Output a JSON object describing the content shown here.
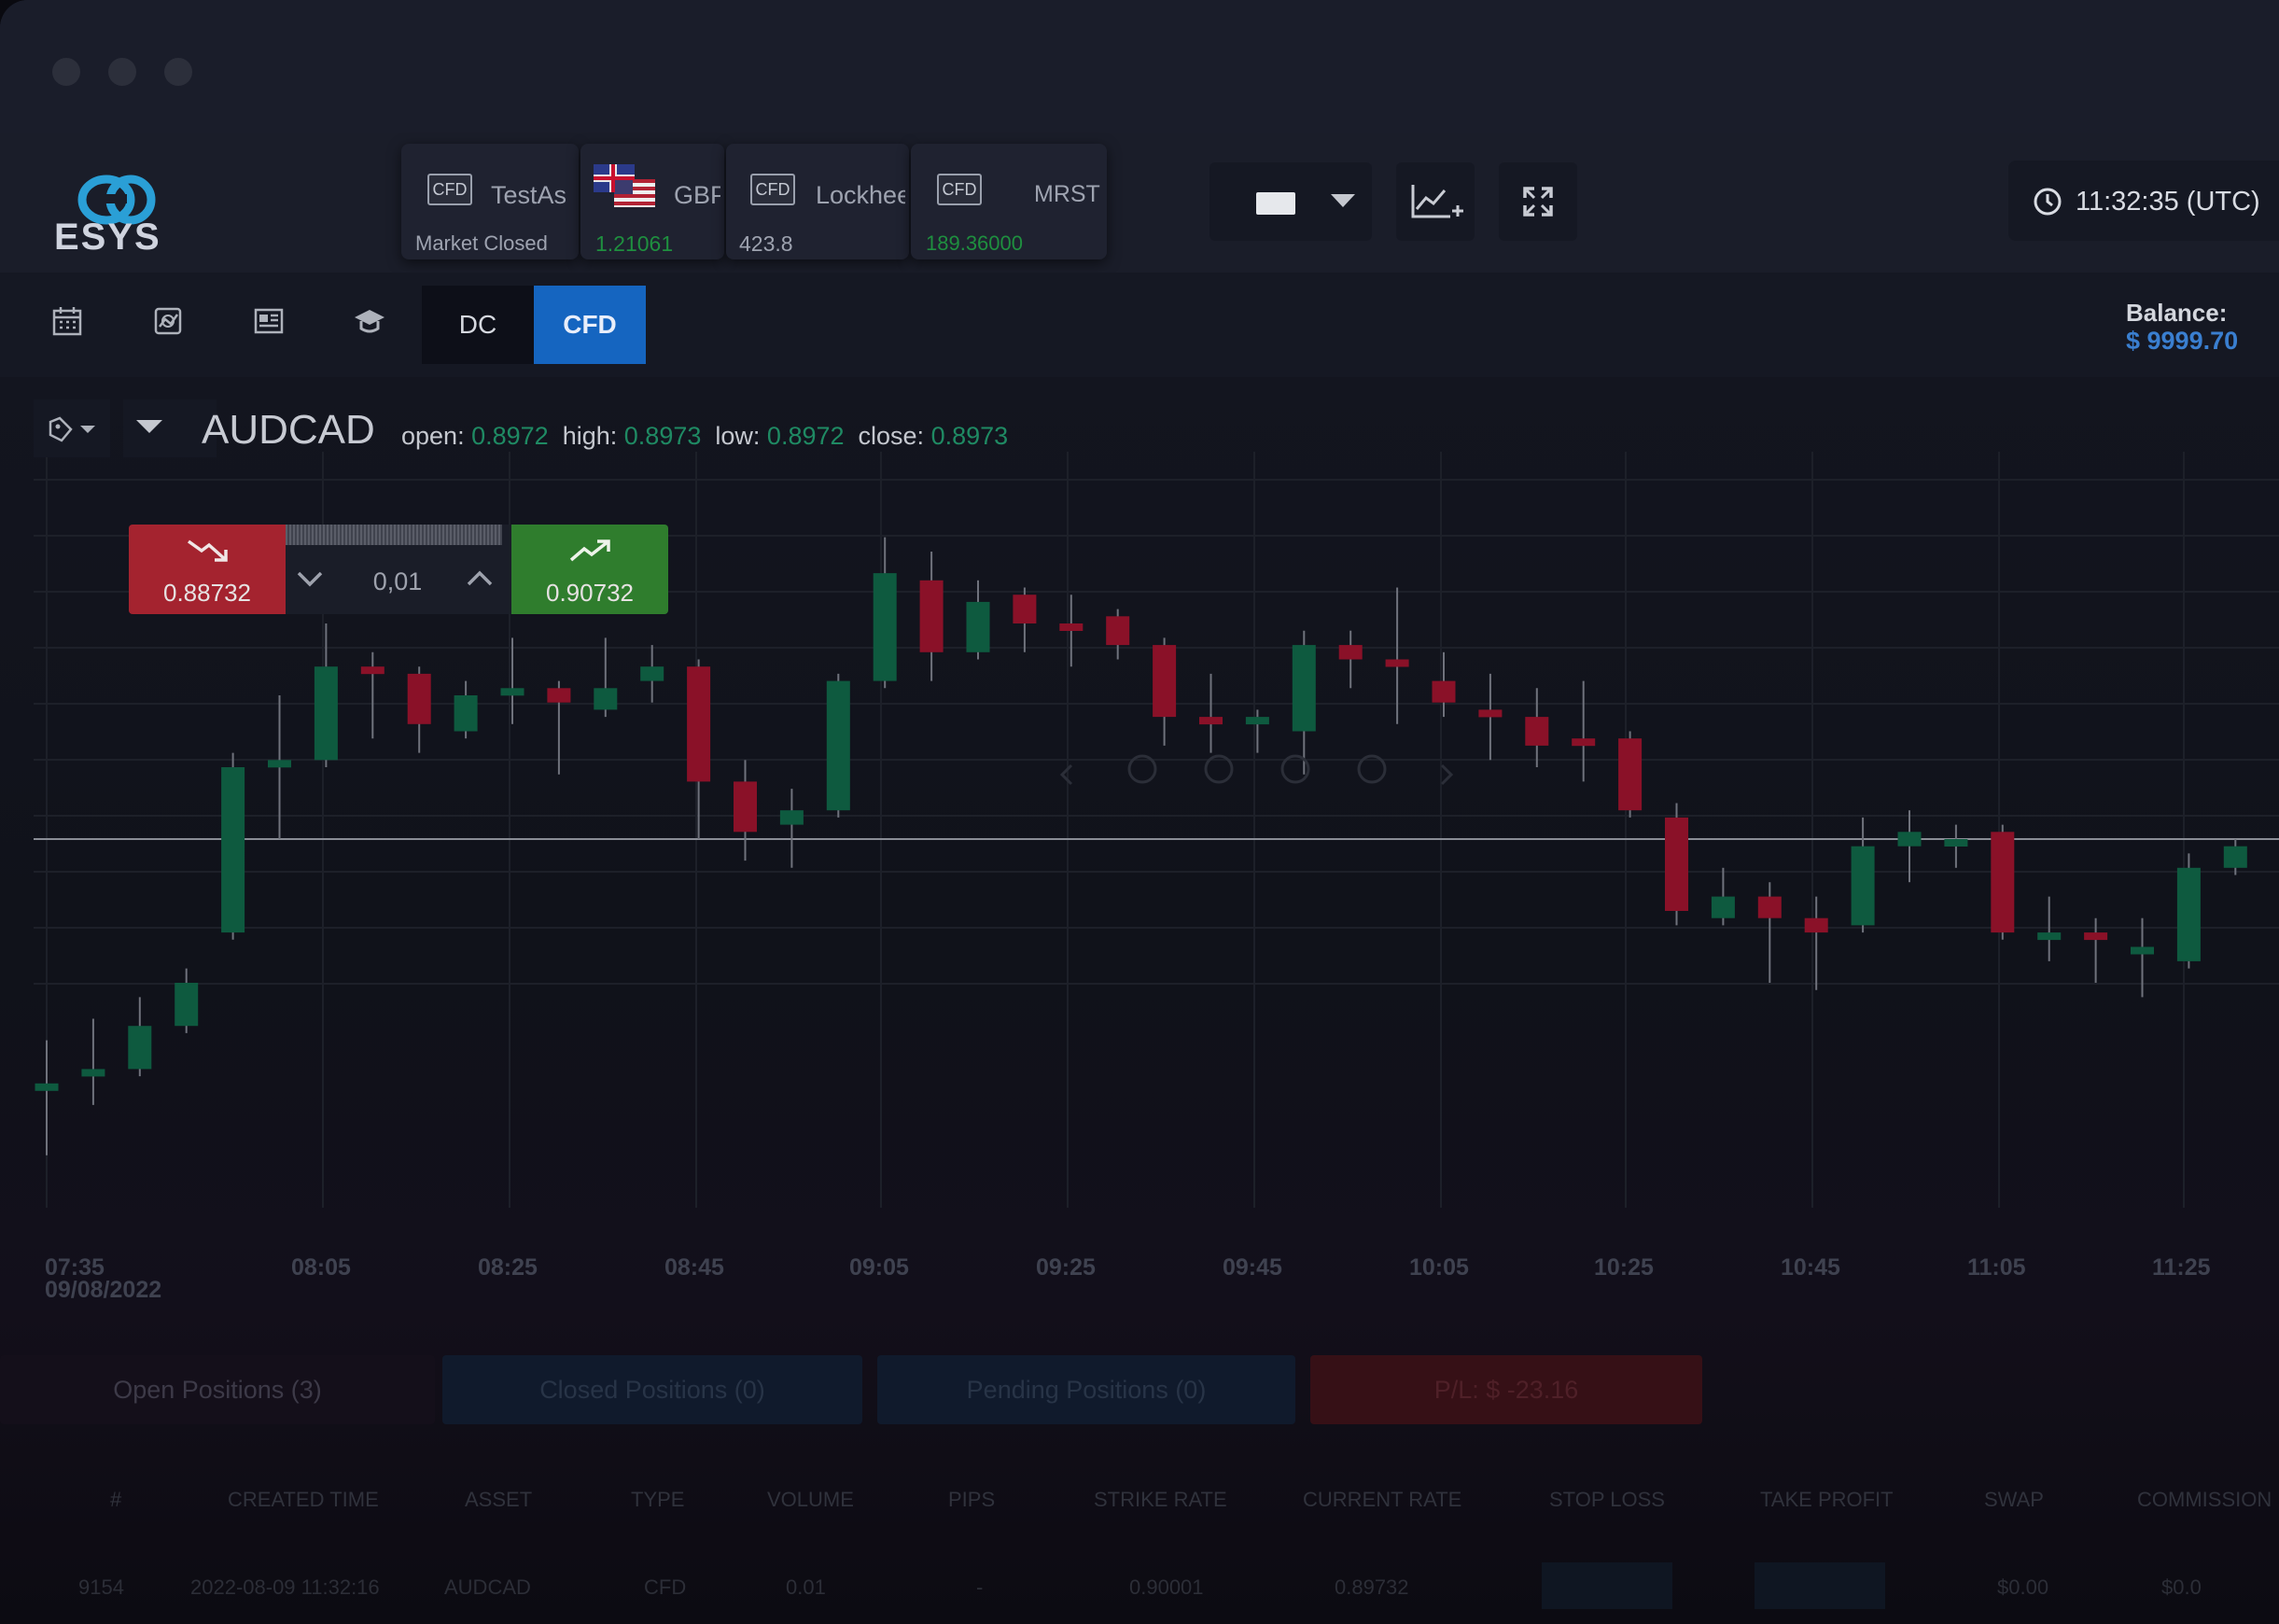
{
  "app": {
    "logo_text": "ESYS"
  },
  "tickers": [
    {
      "badge": "CFD",
      "name": "TestAs",
      "sub": "Market Closed",
      "sub_color": "#9ea3b0"
    },
    {
      "badge": "",
      "name": "GBP",
      "sub": "1.21061",
      "sub_color": "#1f8f3f"
    },
    {
      "badge": "CFD",
      "name": "Lockhee",
      "sub": "423.8",
      "sub_color": "#9ea3b0"
    },
    {
      "badge": "CFD",
      "name": "MRST",
      "sub": "189.36000",
      "sub_color": "#1f8f3f"
    }
  ],
  "header": {
    "clock": "11:32:35 (UTC)"
  },
  "toolbar": {
    "dc_label": "DC",
    "cfd_label": "CFD",
    "balance_label": "Balance:",
    "balance_value": "$ 9999.70"
  },
  "symbol": {
    "name": "AUDCAD",
    "open_label": "open:",
    "open": "0.8972",
    "high_label": "high:",
    "high": "0.8973",
    "low_label": "low:",
    "low": "0.8972",
    "close_label": "close:",
    "close": "0.8973"
  },
  "trade": {
    "sell_price": "0.88732",
    "quantity": "0,01",
    "buy_price": "0.90732"
  },
  "chart_data": {
    "type": "candlestick",
    "x_ticks": [
      "07:35",
      "08:05",
      "08:25",
      "08:45",
      "09:05",
      "09:25",
      "09:45",
      "10:05",
      "10:25",
      "10:45",
      "11:05",
      "11:25"
    ],
    "x_date": "09/08/2022",
    "colors": {
      "up": "#0e5a3f",
      "down": "#8a1128"
    },
    "current_price_line": 0.5,
    "candles": [
      {
        "o": 0.15,
        "c": 0.16,
        "h": 0.22,
        "l": 0.06
      },
      {
        "o": 0.17,
        "c": 0.18,
        "h": 0.25,
        "l": 0.13
      },
      {
        "o": 0.18,
        "c": 0.24,
        "h": 0.28,
        "l": 0.17
      },
      {
        "o": 0.24,
        "c": 0.3,
        "h": 0.32,
        "l": 0.23
      },
      {
        "o": 0.37,
        "c": 0.6,
        "h": 0.62,
        "l": 0.36
      },
      {
        "o": 0.6,
        "c": 0.61,
        "h": 0.7,
        "l": 0.5
      },
      {
        "o": 0.61,
        "c": 0.74,
        "h": 0.8,
        "l": 0.6
      },
      {
        "o": 0.74,
        "c": 0.73,
        "h": 0.76,
        "l": 0.64
      },
      {
        "o": 0.73,
        "c": 0.66,
        "h": 0.74,
        "l": 0.62
      },
      {
        "o": 0.65,
        "c": 0.7,
        "h": 0.72,
        "l": 0.64
      },
      {
        "o": 0.7,
        "c": 0.71,
        "h": 0.78,
        "l": 0.66
      },
      {
        "o": 0.71,
        "c": 0.69,
        "h": 0.72,
        "l": 0.59
      },
      {
        "o": 0.68,
        "c": 0.71,
        "h": 0.78,
        "l": 0.67
      },
      {
        "o": 0.72,
        "c": 0.74,
        "h": 0.77,
        "l": 0.69
      },
      {
        "o": 0.74,
        "c": 0.58,
        "h": 0.75,
        "l": 0.5
      },
      {
        "o": 0.58,
        "c": 0.51,
        "h": 0.61,
        "l": 0.47
      },
      {
        "o": 0.52,
        "c": 0.54,
        "h": 0.57,
        "l": 0.46
      },
      {
        "o": 0.54,
        "c": 0.72,
        "h": 0.73,
        "l": 0.53
      },
      {
        "o": 0.72,
        "c": 0.87,
        "h": 0.92,
        "l": 0.71
      },
      {
        "o": 0.86,
        "c": 0.76,
        "h": 0.9,
        "l": 0.72
      },
      {
        "o": 0.76,
        "c": 0.83,
        "h": 0.86,
        "l": 0.75
      },
      {
        "o": 0.84,
        "c": 0.8,
        "h": 0.85,
        "l": 0.76
      },
      {
        "o": 0.8,
        "c": 0.79,
        "h": 0.84,
        "l": 0.74
      },
      {
        "o": 0.81,
        "c": 0.77,
        "h": 0.82,
        "l": 0.75
      },
      {
        "o": 0.77,
        "c": 0.67,
        "h": 0.78,
        "l": 0.63
      },
      {
        "o": 0.67,
        "c": 0.66,
        "h": 0.73,
        "l": 0.62
      },
      {
        "o": 0.66,
        "c": 0.67,
        "h": 0.68,
        "l": 0.62
      },
      {
        "o": 0.65,
        "c": 0.77,
        "h": 0.79,
        "l": 0.59
      },
      {
        "o": 0.77,
        "c": 0.75,
        "h": 0.79,
        "l": 0.71
      },
      {
        "o": 0.75,
        "c": 0.74,
        "h": 0.85,
        "l": 0.66
      },
      {
        "o": 0.72,
        "c": 0.69,
        "h": 0.76,
        "l": 0.67
      },
      {
        "o": 0.68,
        "c": 0.67,
        "h": 0.73,
        "l": 0.61
      },
      {
        "o": 0.67,
        "c": 0.63,
        "h": 0.71,
        "l": 0.6
      },
      {
        "o": 0.64,
        "c": 0.63,
        "h": 0.72,
        "l": 0.58
      },
      {
        "o": 0.64,
        "c": 0.54,
        "h": 0.65,
        "l": 0.53
      },
      {
        "o": 0.53,
        "c": 0.4,
        "h": 0.55,
        "l": 0.38
      },
      {
        "o": 0.39,
        "c": 0.42,
        "h": 0.46,
        "l": 0.38
      },
      {
        "o": 0.42,
        "c": 0.39,
        "h": 0.44,
        "l": 0.3
      },
      {
        "o": 0.39,
        "c": 0.37,
        "h": 0.42,
        "l": 0.29
      },
      {
        "o": 0.38,
        "c": 0.49,
        "h": 0.53,
        "l": 0.37
      },
      {
        "o": 0.49,
        "c": 0.51,
        "h": 0.54,
        "l": 0.44
      },
      {
        "o": 0.5,
        "c": 0.5,
        "h": 0.52,
        "l": 0.46
      },
      {
        "o": 0.51,
        "c": 0.37,
        "h": 0.52,
        "l": 0.36
      },
      {
        "o": 0.36,
        "c": 0.37,
        "h": 0.42,
        "l": 0.33
      },
      {
        "o": 0.37,
        "c": 0.36,
        "h": 0.39,
        "l": 0.3
      },
      {
        "o": 0.35,
        "c": 0.35,
        "h": 0.39,
        "l": 0.28
      },
      {
        "o": 0.33,
        "c": 0.46,
        "h": 0.48,
        "l": 0.32
      },
      {
        "o": 0.46,
        "c": 0.49,
        "h": 0.5,
        "l": 0.45
      }
    ]
  },
  "positions": {
    "tabs": [
      {
        "label": "Open Positions  (3)",
        "bg": "#140f1a",
        "color": "#3d3a48"
      },
      {
        "label": "Closed Positions  (0)",
        "bg": "#101a2c",
        "color": "#283447"
      },
      {
        "label": "Pending Positions  (0)",
        "bg": "#101a2c",
        "color": "#283447"
      },
      {
        "label": "P/L: $ -23.16",
        "bg": "#361016",
        "color": "#4f2028"
      }
    ],
    "columns": [
      "#",
      "CREATED TIME",
      "ASSET",
      "TYPE",
      "VOLUME",
      "PIPS",
      "STRIKE RATE",
      "CURRENT RATE",
      "STOP LOSS",
      "TAKE PROFIT",
      "SWAP",
      "COMMISSION"
    ],
    "row": [
      "9154",
      "2022-08-09 11:32:16",
      "AUDCAD",
      "CFD",
      "0.01",
      "-",
      "0.90001",
      "0.89732",
      "",
      "",
      "$0.00",
      "$0.0"
    ]
  }
}
